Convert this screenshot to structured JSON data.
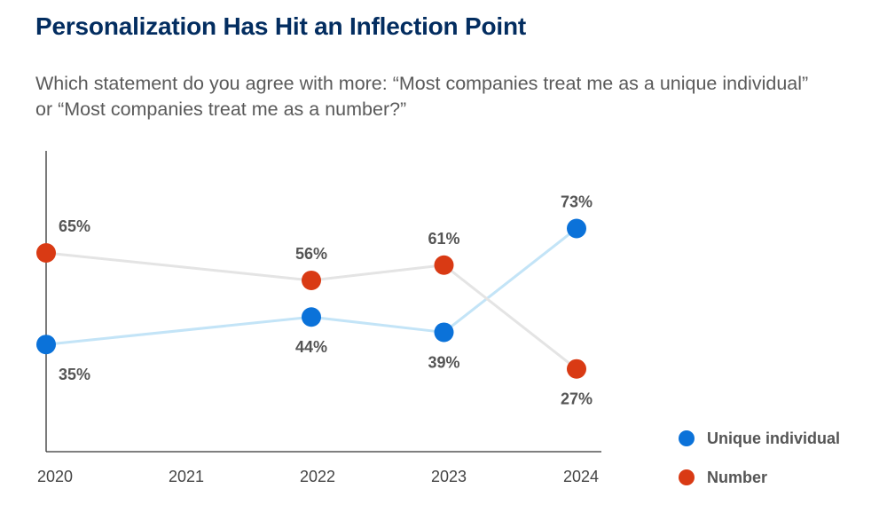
{
  "header": {
    "title": "Personalization Has Hit an Inflection Point",
    "subtitle": "Which statement do you agree with more: “Most companies treat me as a unique individual” or “Most companies treat me as a number?”"
  },
  "chart_data": {
    "type": "line",
    "title": "Personalization Has Hit an Inflection Point",
    "subtitle": "Which statement do you agree with more: “Most companies treat me as a unique individual” or “Most companies treat me as a number?”",
    "xlabel": "",
    "ylabel": "",
    "categories": [
      "2020",
      "2021",
      "2022",
      "2023",
      "2024"
    ],
    "ylim": [
      0,
      100
    ],
    "grid": false,
    "legend_position": "right",
    "series": [
      {
        "name": "Unique individual",
        "color": "#0b72d9",
        "line_color": "#c3e4f7",
        "points": [
          {
            "x": "2020",
            "y": 35,
            "label": "35%",
            "label_pos": "below"
          },
          {
            "x": "2022",
            "y": 44,
            "label": "44%",
            "label_pos": "below"
          },
          {
            "x": "2023",
            "y": 39,
            "label": "39%",
            "label_pos": "below"
          },
          {
            "x": "2024",
            "y": 73,
            "label": "73%",
            "label_pos": "above"
          }
        ]
      },
      {
        "name": "Number",
        "color": "#d93a14",
        "line_color": "#e4e4e4",
        "points": [
          {
            "x": "2020",
            "y": 65,
            "label": "65%",
            "label_pos": "above"
          },
          {
            "x": "2022",
            "y": 56,
            "label": "56%",
            "label_pos": "above"
          },
          {
            "x": "2023",
            "y": 61,
            "label": "61%",
            "label_pos": "above"
          },
          {
            "x": "2024",
            "y": 27,
            "label": "27%",
            "label_pos": "below"
          }
        ]
      }
    ]
  }
}
